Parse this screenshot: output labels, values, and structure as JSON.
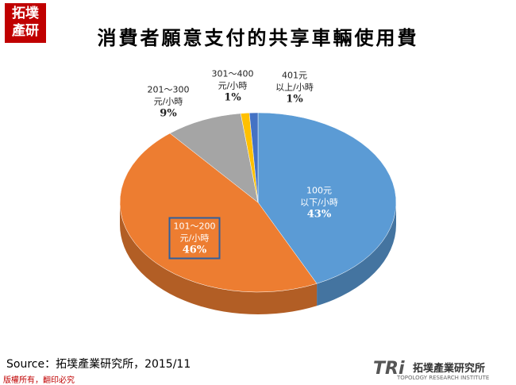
{
  "chart_data": {
    "type": "pie3d",
    "title": "消費者願意支付的共享車輛使用費",
    "categories": [
      "100元\n以下/小時",
      "101～200\n元/小時",
      "201～300\n元/小時",
      "301～400\n元/小時",
      "401元\n以上/小時"
    ],
    "values": [
      43,
      46,
      9,
      1,
      1
    ],
    "value_labels": [
      "43%",
      "46%",
      "9%",
      "1%",
      "1%"
    ],
    "colors": [
      "#5b9bd5",
      "#ed7d31",
      "#a5a5a5",
      "#ffc000",
      "#4472c4"
    ],
    "source": "Source：拓墣產業研究所，2015/11"
  },
  "logo": "拓墣\n產研",
  "footer_note": "版權所有，翻印必究",
  "brand": {
    "mark": "TRi",
    "name": "拓墣產業研究所",
    "english": "TOPOLOGY RESEARCH INSTITUTE"
  }
}
